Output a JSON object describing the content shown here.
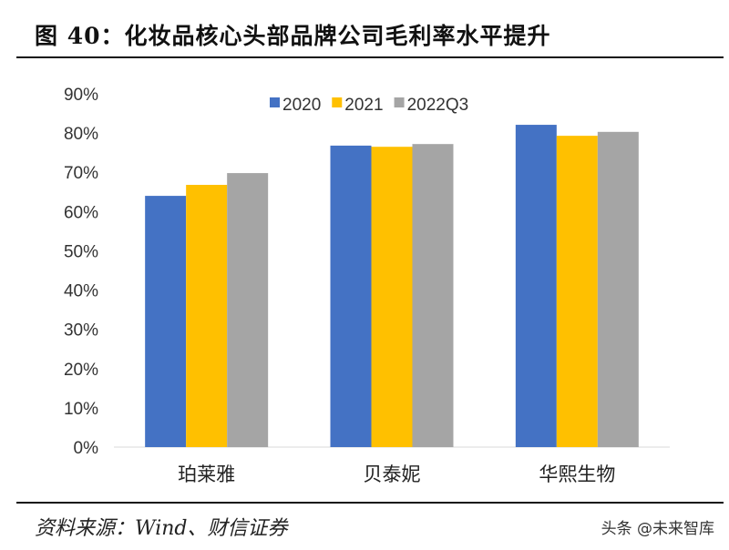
{
  "title": "图 40：化妆品核心头部品牌公司毛利率水平提升",
  "source": "资料来源：Wind、财信证券",
  "watermark": "头条 @未来智库",
  "chart_data": {
    "type": "bar",
    "title": "图 40：化妆品核心头部品牌公司毛利率水平提升",
    "xlabel": "",
    "ylabel": "",
    "categories": [
      "珀莱雅",
      "贝泰妮",
      "华熙生物"
    ],
    "series": [
      {
        "name": "2020",
        "color": "#4472C4",
        "values": [
          64.0,
          76.8,
          82.1
        ]
      },
      {
        "name": "2021",
        "color": "#FFC000",
        "values": [
          66.8,
          76.5,
          79.3
        ]
      },
      {
        "name": "2022Q3",
        "color": "#A5A5A5",
        "values": [
          69.8,
          77.2,
          80.3
        ]
      }
    ],
    "ylim": [
      0,
      90
    ],
    "yticks": [
      "0%",
      "10%",
      "20%",
      "30%",
      "40%",
      "50%",
      "60%",
      "70%",
      "80%",
      "90%"
    ],
    "grid": false,
    "legend": "top-center"
  }
}
